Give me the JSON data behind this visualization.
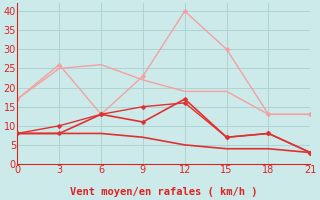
{
  "xlabel": "Vent moyen/en rafales ( km/h )",
  "x": [
    0,
    3,
    6,
    9,
    12,
    15,
    18,
    21
  ],
  "line1_y": [
    17,
    26,
    13,
    23,
    40,
    30,
    13,
    13
  ],
  "line1_color": "#f4a0a0",
  "line2_y": [
    17,
    25,
    26,
    22,
    19,
    19,
    13,
    13
  ],
  "line2_color": "#f4a0a0",
  "line3_y": [
    8,
    8,
    13,
    11,
    17,
    7,
    8,
    3
  ],
  "line3_color": "#e03030",
  "line4_y": [
    8,
    8,
    8,
    7,
    5,
    4,
    4,
    3
  ],
  "line4_color": "#e03030",
  "line5_y": [
    8,
    10,
    13,
    15,
    16,
    7,
    8,
    3
  ],
  "line5_color": "#e03030",
  "bg_color": "#cdeaea",
  "grid_color": "#aacfcf",
  "axis_color": "#dd2222",
  "text_color": "#dd2222",
  "ylim": [
    0,
    42
  ],
  "yticks": [
    0,
    5,
    10,
    15,
    20,
    25,
    30,
    35,
    40
  ],
  "xlim": [
    0,
    21
  ],
  "xticks": [
    0,
    3,
    6,
    9,
    12,
    15,
    18,
    21
  ],
  "xlabel_fontsize": 7.5,
  "tick_fontsize": 7
}
